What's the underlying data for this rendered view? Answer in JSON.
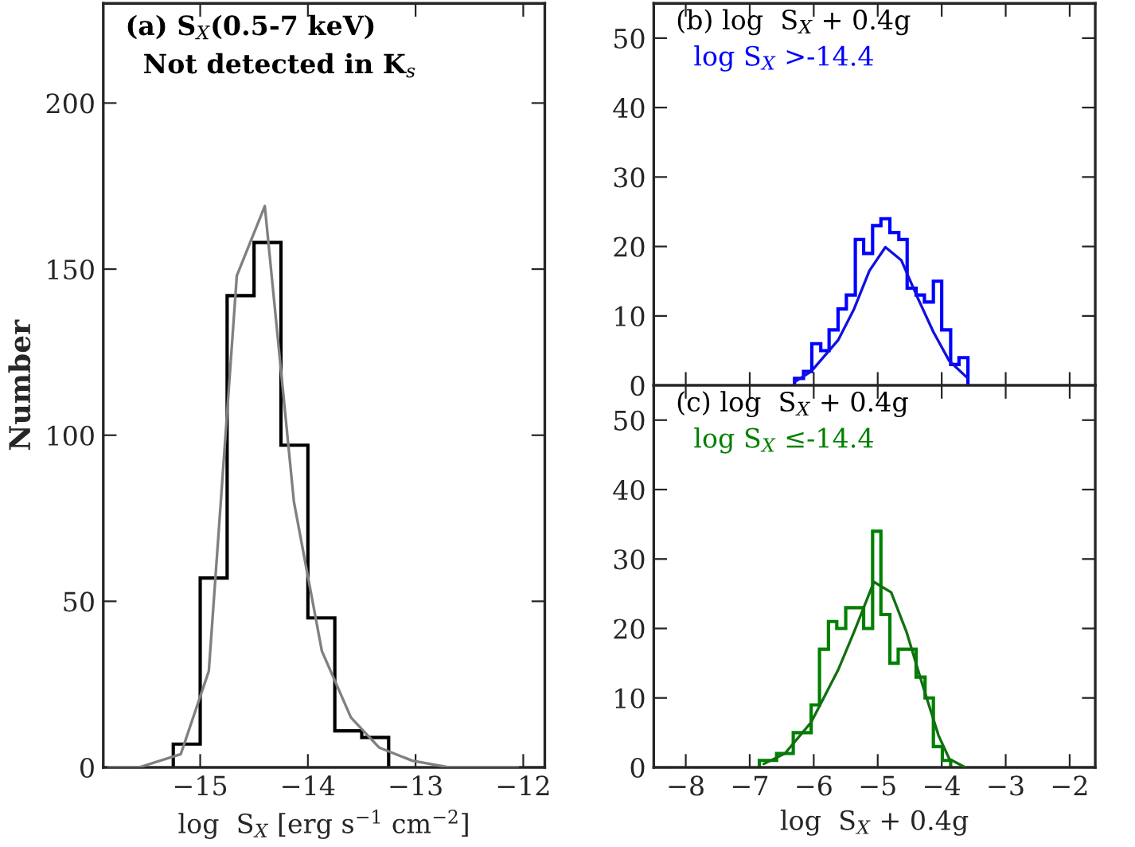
{
  "chart_data": [
    {
      "type": "histogram",
      "ylabel": "Number",
      "xlabel": "log  S$_{X}$ [erg s$^{−1}$ cm$^{−2}$]",
      "annotations": [
        "(a) S$_{X}$(0.5-7 keV)",
        "Not detected in K$_{s}$"
      ],
      "xlim": [
        -15.9,
        -11.8
      ],
      "ylim": [
        0,
        230
      ],
      "xticks": [
        {
          "value": -15,
          "label": "−15"
        },
        {
          "value": -14,
          "label": "−14"
        },
        {
          "value": -13,
          "label": "−13"
        },
        {
          "value": -12,
          "label": "−12"
        }
      ],
      "yticks": [
        0,
        50,
        100,
        150,
        200
      ],
      "grid": false,
      "series": [
        {
          "type": "histogram",
          "color": "#000000",
          "bins": [
            -15.25,
            -15.0,
            -14.75,
            -14.5,
            -14.25,
            -14.0,
            -13.75,
            -13.5,
            -13.25
          ],
          "values": [
            7,
            57,
            142,
            158,
            97,
            45,
            11,
            9
          ]
        },
        {
          "type": "line",
          "color": "#808080",
          "x": [
            -15.85,
            -15.57,
            -15.18,
            -14.92,
            -14.66,
            -14.4,
            -14.13,
            -13.87,
            -13.6,
            -13.34,
            -13.03,
            -12.69,
            -12.05
          ],
          "values": [
            0,
            0,
            4,
            29,
            148,
            169,
            80,
            35,
            15,
            6,
            2,
            0,
            0
          ]
        }
      ]
    },
    {
      "type": "histogram",
      "annotations": [
        "(b) log  S$_{X}$ + 0.4g",
        "log S$_{X}$ >-14.4"
      ],
      "xlim": [
        -8.5,
        -1.6
      ],
      "ylim": [
        0,
        55
      ],
      "xticks": [
        -8,
        -7,
        -6,
        -5,
        -4,
        -3,
        -2
      ],
      "yticks": [
        0,
        10,
        20,
        30,
        40,
        50
      ],
      "tick_labels": "y",
      "grid": false,
      "series": [
        {
          "type": "histogram",
          "color": "#0000ff",
          "bins": [
            -6.3,
            -6.16,
            -6.03,
            -5.89,
            -5.76,
            -5.62,
            -5.49,
            -5.35,
            -5.22,
            -5.08,
            -4.95,
            -4.81,
            -4.67,
            -4.54,
            -4.4,
            -4.27,
            -4.13,
            -4.0,
            -3.86,
            -3.73,
            -3.59
          ],
          "values": [
            1,
            2,
            6,
            5,
            8,
            11,
            13,
            21,
            19,
            23,
            24,
            22,
            21,
            14,
            13,
            12,
            15,
            8,
            3,
            4
          ]
        },
        {
          "type": "line",
          "color": "#1010e0",
          "x": [
            -6.3,
            -6.04,
            -5.62,
            -5.37,
            -5.13,
            -4.88,
            -4.63,
            -4.38,
            -4.13,
            -3.88,
            -3.59
          ],
          "values": [
            0.5,
            2,
            6.5,
            11,
            16.5,
            19.9,
            18,
            12.7,
            7.7,
            3.5,
            1
          ]
        }
      ]
    },
    {
      "type": "histogram",
      "xlabel": "log  S$_{X}$ + 0.4g",
      "annotations": [
        "(c) log  S$_{X}$ + 0.4g",
        "log S$_{X}$ ≤-14.4"
      ],
      "xlim": [
        -8.5,
        -1.6
      ],
      "ylim": [
        0,
        55
      ],
      "xticks": [
        {
          "value": -8,
          "label": "−8"
        },
        {
          "value": -7,
          "label": "−7"
        },
        {
          "value": -6,
          "label": "−6"
        },
        {
          "value": -5,
          "label": "−5"
        },
        {
          "value": -4,
          "label": "−4"
        },
        {
          "value": -3,
          "label": "−3"
        },
        {
          "value": -2,
          "label": "−2"
        }
      ],
      "yticks": [
        0,
        10,
        20,
        30,
        40,
        50
      ],
      "grid": false,
      "series": [
        {
          "type": "histogram",
          "color": "#008000",
          "bins": [
            -6.85,
            -6.72,
            -6.58,
            -6.45,
            -6.32,
            -6.19,
            -6.04,
            -5.91,
            -5.77,
            -5.64,
            -5.5,
            -5.37,
            -5.22,
            -5.08,
            -4.95,
            -4.81,
            -4.68,
            -4.54,
            -4.4,
            -4.26,
            -4.13,
            -3.99,
            -3.86
          ],
          "values": [
            1,
            1,
            2,
            2,
            5,
            5,
            9,
            17,
            21,
            20,
            23,
            23,
            20,
            34,
            22,
            15,
            17,
            17,
            13,
            10,
            3,
            1
          ]
        },
        {
          "type": "line",
          "color": "#107010",
          "x": [
            -6.78,
            -6.45,
            -6.04,
            -5.62,
            -5.37,
            -5.06,
            -4.79,
            -4.55,
            -4.3,
            -4.05,
            -3.88,
            -3.63
          ],
          "values": [
            0.5,
            2,
            6.5,
            14,
            19.5,
            26.7,
            25.2,
            19.5,
            11.9,
            4.6,
            1.2,
            0
          ]
        }
      ]
    }
  ]
}
